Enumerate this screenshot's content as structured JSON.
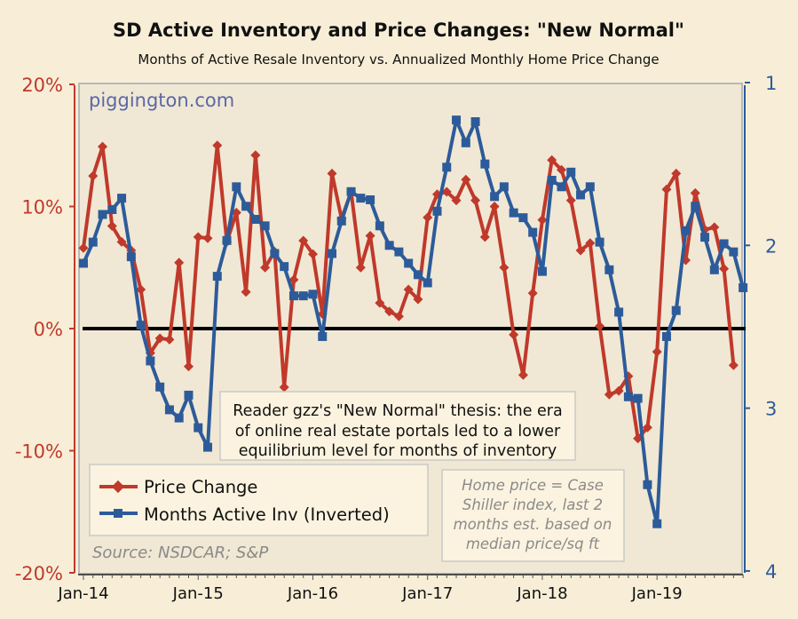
{
  "chart_data": {
    "type": "line",
    "title": "SD Active Inventory and Price Changes: \"New Normal\"",
    "subtitle": "Months of Active Resale Inventory vs. Annualized Monthly Home Price Change",
    "watermark": "piggington.com",
    "source": "Source: NSDCAR; S&P",
    "annotation": [
      "Reader gzz's \"New Normal\" thesis: the era",
      "of online real estate portals led to a lower",
      "equilibrium level for months of inventory"
    ],
    "note": [
      "Home price = Case",
      "Shiller index, last 2",
      "months est. based on",
      "median price/sq ft"
    ],
    "x_labels": [
      "Jan-14",
      "Jan-15",
      "Jan-16",
      "Jan-17",
      "Jan-18",
      "Jan-19"
    ],
    "y_left": {
      "ticks": [
        "20%",
        "10%",
        "0%",
        "-10%",
        "-20%"
      ],
      "range": [
        -20,
        20
      ]
    },
    "y_right": {
      "ticks": [
        "1",
        "2",
        "3",
        "4"
      ],
      "range": [
        1,
        4
      ],
      "inverted": true
    },
    "x_start": "Jan-14",
    "series": [
      {
        "name": "Price Change",
        "axis": "left",
        "color": "#c0392b",
        "marker": "diamond",
        "values": [
          6.6,
          12.5,
          14.9,
          8.4,
          7.1,
          6.4,
          3.2,
          -2.0,
          -0.8,
          -0.9,
          5.4,
          -3.1,
          7.5,
          7.4,
          15.0,
          7.1,
          9.5,
          3.0,
          14.2,
          5.0,
          6.3,
          -4.8,
          4.0,
          7.2,
          6.1,
          1.2,
          12.7,
          9.0,
          11.2,
          5.0,
          7.6,
          2.1,
          1.4,
          1.0,
          3.2,
          2.4,
          9.1,
          11.0,
          11.2,
          10.5,
          12.2,
          10.5,
          7.5,
          10.0,
          5.0,
          -0.5,
          -3.8,
          2.9,
          8.9,
          13.8,
          13.0,
          10.5,
          6.4,
          7.0,
          0.2,
          -5.4,
          -5.1,
          -3.9,
          -9.0,
          -8.1,
          -1.9,
          11.4,
          12.7,
          5.6,
          11.1,
          8.1,
          8.3,
          4.9,
          -3.0
        ]
      },
      {
        "name": "Months Active Inv (Inverted)",
        "axis": "right",
        "color": "#2d5b9a",
        "marker": "square",
        "values": [
          2.11,
          1.98,
          1.81,
          1.78,
          1.71,
          2.07,
          2.49,
          2.71,
          2.87,
          3.01,
          3.06,
          2.92,
          3.12,
          3.24,
          2.19,
          1.97,
          1.64,
          1.76,
          1.84,
          1.88,
          2.05,
          2.13,
          2.31,
          2.31,
          2.3,
          2.56,
          2.05,
          1.85,
          1.67,
          1.71,
          1.72,
          1.88,
          2.0,
          2.04,
          2.11,
          2.18,
          2.23,
          1.79,
          1.52,
          1.23,
          1.37,
          1.24,
          1.5,
          1.7,
          1.64,
          1.8,
          1.83,
          1.92,
          2.16,
          1.6,
          1.64,
          1.55,
          1.69,
          1.64,
          1.98,
          2.15,
          2.41,
          2.93,
          2.94,
          3.47,
          3.71,
          2.56,
          2.4,
          1.91,
          1.76,
          1.95,
          2.15,
          1.99,
          2.04,
          2.26
        ]
      }
    ],
    "grid": false,
    "legend": "bottom-left"
  }
}
